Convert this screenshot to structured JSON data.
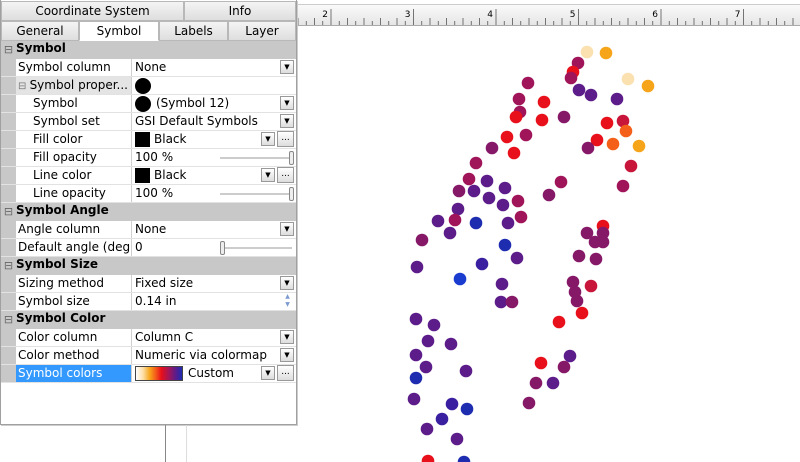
{
  "tabs_top": [
    {
      "label": "Coordinate System"
    },
    {
      "label": "Info"
    }
  ],
  "tabs_bottom": [
    {
      "label": "General"
    },
    {
      "label": "Symbol",
      "active": true
    },
    {
      "label": "Labels"
    },
    {
      "label": "Layer"
    }
  ],
  "sections": {
    "symbol": {
      "title": "Symbol",
      "symbol_column": {
        "label": "Symbol column",
        "value": "None"
      },
      "props": {
        "label": "Symbol proper..."
      },
      "symbol": {
        "label": "Symbol",
        "value": "(Symbol 12)"
      },
      "symbol_set": {
        "label": "Symbol set",
        "value": "GSI Default Symbols"
      },
      "fill_color": {
        "label": "Fill color",
        "value": "Black",
        "swatch": "#000000"
      },
      "fill_opacity": {
        "label": "Fill opacity",
        "value": "100 %",
        "percent": 100
      },
      "line_color": {
        "label": "Line color",
        "value": "Black",
        "swatch": "#000000"
      },
      "line_opacity": {
        "label": "Line opacity",
        "value": "100 %",
        "percent": 100
      }
    },
    "angle": {
      "title": "Symbol Angle",
      "angle_column": {
        "label": "Angle column",
        "value": "None"
      },
      "default_angle": {
        "label": "Default angle (deg...",
        "value": "0"
      }
    },
    "size": {
      "title": "Symbol Size",
      "sizing_method": {
        "label": "Sizing method",
        "value": "Fixed size"
      },
      "symbol_size": {
        "label": "Symbol size",
        "value": "0.14 in"
      }
    },
    "color": {
      "title": "Symbol Color",
      "color_column": {
        "label": "Color column",
        "value": "Column C"
      },
      "color_method": {
        "label": "Color method",
        "value": "Numeric via colormap"
      },
      "symbol_colors": {
        "label": "Symbol colors",
        "value": "Custom",
        "colormap": [
          "#ffffff",
          "#fde0a8",
          "#f6a51a",
          "#f4601a",
          "#e8101a",
          "#a0155a",
          "#5c1c8a",
          "#1e2cb0"
        ]
      }
    }
  },
  "ruler": {
    "labels": [
      "2",
      "3",
      "4",
      "5",
      "6",
      "7"
    ]
  },
  "icons": {
    "collapse": "minus-box-icon",
    "dropdown": "chevron-down-icon",
    "ellipsis": "ellipsis-button",
    "spinner": "spin-updown-icon"
  }
}
